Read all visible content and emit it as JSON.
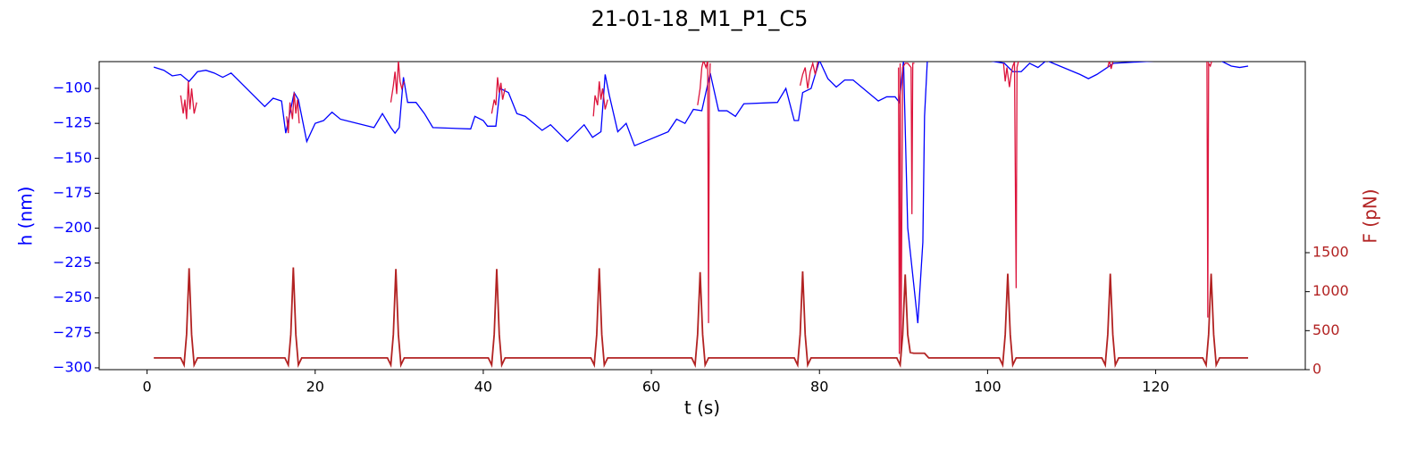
{
  "chart_data": {
    "type": "line",
    "title": "21-01-18_M1_P1_C5",
    "xlabel": "t (s)",
    "ylabel": "h (nm)",
    "y2label": "F (pN)",
    "ylabel_color": "#0000ff",
    "y2label_color": "#b22222",
    "xlim": [
      -5.7,
      137.8
    ],
    "xticks": [
      0,
      20,
      40,
      60,
      80,
      100,
      120
    ],
    "ylim": [
      -301.3,
      -80.8
    ],
    "yticks": [
      {
        "value": -300,
        "label": "−300"
      },
      {
        "value": -275,
        "label": "−275"
      },
      {
        "value": -250,
        "label": "−250"
      },
      {
        "value": -225,
        "label": "−225"
      },
      {
        "value": -200,
        "label": "−200"
      },
      {
        "value": -175,
        "label": "−175"
      },
      {
        "value": -150,
        "label": "−150"
      },
      {
        "value": -125,
        "label": "−125"
      },
      {
        "value": -100,
        "label": "−100"
      }
    ],
    "y2lim": [
      0,
      3950
    ],
    "y2ticks": [
      0,
      500,
      1000,
      1500
    ],
    "series": [
      {
        "color": "#0000ff",
        "axis": "y",
        "x": [
          0.8,
          2,
          3,
          4,
          5,
          6,
          7,
          8,
          9,
          10,
          14,
          15,
          16,
          16.5,
          17.5,
          18,
          19,
          20,
          21,
          22,
          23,
          27,
          28,
          29,
          29.5,
          30,
          30.5,
          31,
          32,
          33,
          34,
          38.5,
          39,
          40,
          40.5,
          41.5,
          42,
          43,
          44,
          45,
          47,
          48,
          50,
          52,
          53,
          54,
          54.5,
          55,
          56,
          57,
          58,
          62,
          63,
          64,
          65,
          66,
          67,
          68,
          69,
          70,
          71,
          75,
          76,
          77,
          77.5,
          78,
          79,
          80,
          81,
          82,
          83,
          84,
          87,
          88,
          89,
          89.5,
          90,
          90.5,
          91.3,
          91.7,
          92.3,
          92.5,
          93,
          100,
          102,
          103,
          104,
          105,
          106,
          107,
          111,
          112,
          113,
          115,
          127,
          129,
          130,
          131
        ],
        "values": [
          -84.7,
          -87,
          -91,
          -90,
          -95,
          -88,
          -87,
          -89,
          -92,
          -89,
          -113,
          -107,
          -109,
          -132,
          -103,
          -108,
          -138,
          -125,
          -123,
          -117,
          -122,
          -128,
          -118,
          -128,
          -132,
          -128,
          -92,
          -110,
          -110,
          -118,
          -128,
          -129,
          -120,
          -123,
          -127,
          -127,
          -100,
          -103,
          -118,
          -120,
          -130,
          -126,
          -138,
          -126,
          -135,
          -131,
          -90,
          -105,
          -131,
          -125,
          -141,
          -131,
          -122,
          -125,
          -115,
          -116,
          -89,
          -116,
          -116,
          -120,
          -111,
          -110,
          -100,
          -123,
          -123,
          -103,
          -100,
          -80,
          -93,
          -99,
          -94,
          -94,
          -109,
          -106,
          -106,
          -110,
          -80,
          -200,
          -245,
          -268,
          -210,
          -120,
          -60,
          -80,
          -82,
          -88,
          -88,
          -82,
          -85,
          -80,
          -90,
          -93,
          -90,
          -82,
          -78,
          -84,
          -85,
          -84
        ]
      },
      {
        "color": "#dc143c",
        "axis": "y",
        "x": [
          4.0,
          4.3,
          4.5,
          4.7,
          4.9,
          5.1,
          5.3,
          5.6,
          5.9,
          10,
          16.6,
          16.8,
          17.0,
          17.3,
          17.5,
          17.7,
          17.9,
          18.1,
          23,
          29.0,
          29.3,
          29.5,
          29.7,
          29.9,
          30.1,
          30.3,
          30.6,
          36,
          41.0,
          41.3,
          41.5,
          41.7,
          41.9,
          42.1,
          42.3,
          42.6,
          48,
          53.1,
          53.3,
          53.6,
          53.8,
          54.0,
          54.2,
          54.5,
          54.8,
          60,
          65.5,
          65.8,
          66.0,
          66.2,
          66.5,
          66.7,
          66.8,
          66.9,
          67.0,
          72,
          77.7,
          78.0,
          78.3,
          78.6,
          78.9,
          79.2,
          79.5,
          79.8,
          85,
          89.4,
          89.5,
          89.6,
          89.7,
          89.9,
          90.2,
          90.5,
          90.9,
          91.0,
          91.1,
          91.3,
          97,
          101.9,
          102.1,
          102.3,
          102.6,
          102.8,
          103.0,
          103.2,
          103.4,
          103.5,
          103.7,
          110,
          114.3,
          114.5,
          114.7,
          114.9,
          120,
          126.1,
          126.2,
          126.3,
          126.5,
          126.7
        ],
        "values": [
          -105,
          -118,
          -108,
          -122,
          -95,
          -115,
          -100,
          -118,
          -110,
          null,
          -120,
          -132,
          -110,
          -122,
          -103,
          -118,
          -108,
          -125,
          null,
          -110,
          -98,
          -88,
          -104,
          -80,
          -95,
          -100,
          -95,
          null,
          -118,
          -108,
          -112,
          -92,
          -103,
          -96,
          -108,
          -100,
          null,
          -120,
          -105,
          -112,
          -95,
          -108,
          -100,
          -115,
          -108,
          null,
          -112,
          -100,
          -85,
          -80,
          -85,
          -80,
          -268,
          -100,
          -82,
          null,
          -98,
          -90,
          -85,
          -100,
          -88,
          -82,
          -90,
          -81,
          null,
          -85,
          -290,
          -82,
          -292,
          -85,
          -82,
          -82,
          -85,
          -190,
          -82,
          -82,
          null,
          -82,
          -95,
          -85,
          -99,
          -90,
          -84,
          -81,
          -243,
          -85,
          -80,
          null,
          -85,
          -80,
          -86,
          -81,
          null,
          -80,
          -264,
          -82,
          -84,
          -80
        ]
      },
      {
        "color": "#b22222",
        "axis": "y2",
        "x": [
          0.8,
          4.0,
          4.4,
          4.7,
          5.0,
          5.3,
          5.6,
          6.0,
          16.4,
          16.8,
          17.1,
          17.4,
          17.7,
          18.0,
          18.4,
          28.6,
          29.0,
          29.3,
          29.6,
          29.9,
          30.2,
          30.6,
          40.6,
          41.0,
          41.3,
          41.6,
          41.9,
          42.2,
          42.6,
          52.8,
          53.2,
          53.5,
          53.8,
          54.1,
          54.4,
          54.8,
          64.8,
          65.2,
          65.5,
          65.8,
          66.1,
          66.4,
          66.8,
          77.0,
          77.4,
          77.7,
          78.0,
          78.3,
          78.6,
          79.0,
          89.2,
          89.6,
          89.9,
          90.2,
          90.5,
          90.8,
          91.2,
          92.5,
          93,
          101.4,
          101.8,
          102.1,
          102.4,
          102.7,
          103.0,
          103.4,
          113.6,
          114.0,
          114.3,
          114.6,
          114.9,
          115.2,
          115.6,
          125.6,
          126.0,
          126.3,
          126.6,
          126.9,
          127.2,
          127.6,
          131.0
        ],
        "values": [
          150,
          150,
          60,
          450,
          1300,
          450,
          60,
          150,
          150,
          60,
          450,
          1310,
          450,
          60,
          150,
          150,
          60,
          450,
          1290,
          450,
          60,
          150,
          150,
          60,
          450,
          1290,
          450,
          60,
          150,
          150,
          60,
          450,
          1300,
          450,
          60,
          150,
          150,
          60,
          450,
          1250,
          450,
          60,
          150,
          150,
          60,
          450,
          1260,
          450,
          60,
          150,
          150,
          60,
          450,
          1220,
          450,
          220,
          210,
          210,
          150,
          150,
          60,
          450,
          1230,
          450,
          60,
          150,
          150,
          60,
          450,
          1230,
          450,
          60,
          150,
          150,
          60,
          450,
          1230,
          450,
          60,
          150,
          150
        ]
      }
    ]
  }
}
